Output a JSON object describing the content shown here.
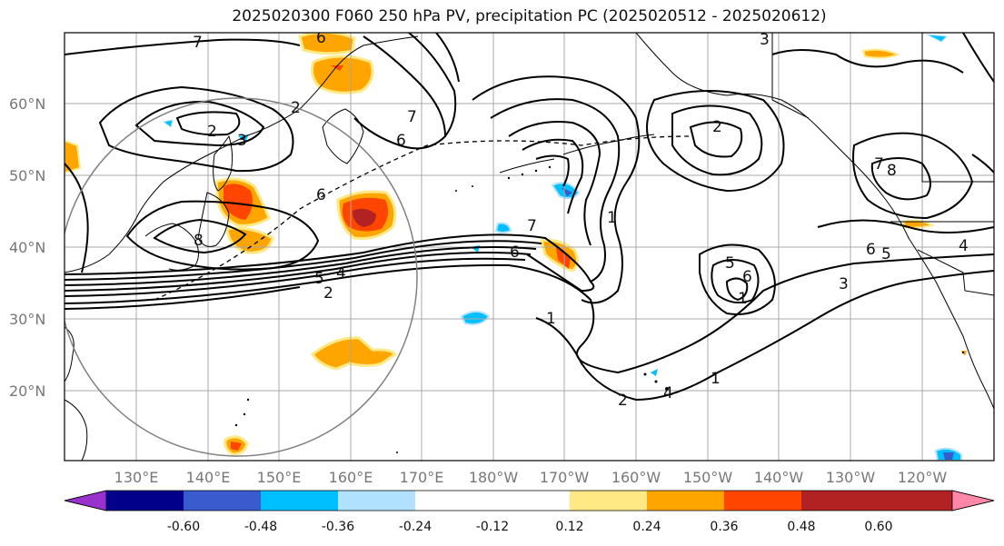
{
  "title": "2025020300 F060 250 hPa PV, precipitation PC (2025020512 - 2025020612)",
  "lat_labels": [
    "60°N",
    "50°N",
    "40°N",
    "30°N",
    "20°N"
  ],
  "lon_labels": [
    "130°E",
    "140°E",
    "150°E",
    "160°E",
    "170°E",
    "180°W",
    "170°W",
    "160°W",
    "150°W",
    "140°W",
    "130°W",
    "120°W"
  ],
  "colorbar": {
    "colors": [
      "#9932CC",
      "#00008B",
      "#3A5BCD",
      "#00BFFF",
      "#B0E2FF",
      "#FFFFFF",
      "#FFE985",
      "#FFA500",
      "#FF4500",
      "#B22222",
      "#FF88A8"
    ],
    "tick_labels": [
      "-0.60",
      "-0.48",
      "-0.36",
      "-0.24",
      "-0.12",
      "0.12",
      "0.24",
      "0.36",
      "0.48",
      "0.60"
    ]
  },
  "pv_contour_labels": [
    "7",
    "6",
    "3",
    "2",
    "2",
    "3",
    "6",
    "7",
    "6",
    "8",
    "5",
    "4",
    "2",
    "7",
    "6",
    "1",
    "1",
    "2",
    "4",
    "1",
    "5",
    "6",
    "1",
    "6",
    "5",
    "3",
    "4",
    "7",
    "8",
    "2"
  ]
}
